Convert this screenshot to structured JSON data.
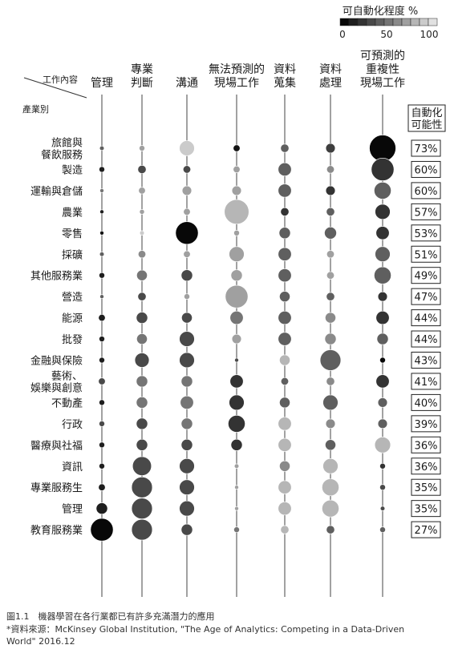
{
  "chart_data": {
    "type": "bubble-matrix",
    "legend": {
      "title": "可自動化程度 %",
      "ticks": [
        "0",
        "50",
        "100"
      ]
    },
    "header": {
      "diagonal_top": "工作內容",
      "diagonal_bottom": "產業別"
    },
    "columns": [
      [
        "管理"
      ],
      [
        "專業",
        "判斷"
      ],
      [
        "溝通"
      ],
      [
        "無法預測的",
        "現場工作"
      ],
      [
        "資料",
        "蒐集"
      ],
      [
        "資料",
        "處理"
      ],
      [
        "可預測的",
        "重複性",
        "現場工作"
      ]
    ],
    "rate_header": [
      "自動化",
      "可能性"
    ],
    "rows": [
      {
        "label": [
          "旅館與",
          "餐飲服務"
        ],
        "rate": "73%",
        "size": [
          0.12,
          0.15,
          0.4,
          0.18,
          0.22,
          0.25,
          0.7
        ],
        "automation": [
          60,
          30,
          10,
          95,
          60,
          75,
          100
        ]
      },
      {
        "label": [
          "製造"
        ],
        "rate": "60%",
        "size": [
          0.15,
          0.22,
          0.2,
          0.18,
          0.35,
          0.2,
          0.6
        ],
        "automation": [
          90,
          70,
          70,
          30,
          60,
          40,
          80
        ]
      },
      {
        "label": [
          "運輸與倉儲"
        ],
        "rate": "60%",
        "size": [
          0.1,
          0.18,
          0.25,
          0.25,
          0.35,
          0.25,
          0.45
        ],
        "automation": [
          50,
          30,
          30,
          30,
          60,
          80,
          60
        ]
      },
      {
        "label": [
          "農業"
        ],
        "rate": "57%",
        "size": [
          0.08,
          0.13,
          0.18,
          0.65,
          0.22,
          0.22,
          0.4
        ],
        "automation": [
          90,
          30,
          30,
          20,
          80,
          60,
          80
        ]
      },
      {
        "label": [
          "零售"
        ],
        "rate": "53%",
        "size": [
          0.08,
          0.12,
          0.6,
          0.15,
          0.3,
          0.32,
          0.35
        ],
        "automation": [
          95,
          10,
          100,
          30,
          60,
          60,
          80
        ]
      },
      {
        "label": [
          "採礦"
        ],
        "rate": "51%",
        "size": [
          0.12,
          0.2,
          0.18,
          0.4,
          0.35,
          0.2,
          0.4
        ],
        "automation": [
          60,
          40,
          30,
          30,
          60,
          30,
          60
        ]
      },
      {
        "label": [
          "其他服務業"
        ],
        "rate": "49%",
        "size": [
          0.15,
          0.28,
          0.3,
          0.3,
          0.35,
          0.2,
          0.45
        ],
        "automation": [
          90,
          50,
          70,
          30,
          60,
          30,
          60
        ]
      },
      {
        "label": [
          "營造"
        ],
        "rate": "47%",
        "size": [
          0.1,
          0.22,
          0.15,
          0.6,
          0.28,
          0.22,
          0.25
        ],
        "automation": [
          60,
          70,
          30,
          30,
          60,
          60,
          80
        ]
      },
      {
        "label": [
          "能源"
        ],
        "rate": "44%",
        "size": [
          0.18,
          0.3,
          0.28,
          0.35,
          0.35,
          0.28,
          0.35
        ],
        "automation": [
          90,
          70,
          70,
          50,
          60,
          40,
          80
        ]
      },
      {
        "label": [
          "批發"
        ],
        "rate": "44%",
        "size": [
          0.15,
          0.28,
          0.4,
          0.25,
          0.35,
          0.3,
          0.3
        ],
        "automation": [
          90,
          50,
          70,
          30,
          60,
          40,
          60
        ]
      },
      {
        "label": [
          "金融與保險"
        ],
        "rate": "43%",
        "size": [
          0.15,
          0.38,
          0.4,
          0.06,
          0.28,
          0.55,
          0.15
        ],
        "automation": [
          90,
          70,
          70,
          70,
          20,
          60,
          100
        ]
      },
      {
        "label": [
          "藝術、",
          "娛樂與創意"
        ],
        "rate": "41%",
        "size": [
          0.18,
          0.3,
          0.3,
          0.35,
          0.2,
          0.22,
          0.35
        ],
        "automation": [
          70,
          50,
          50,
          80,
          60,
          40,
          80
        ]
      },
      {
        "label": [
          "不動產"
        ],
        "rate": "40%",
        "size": [
          0.15,
          0.3,
          0.35,
          0.4,
          0.28,
          0.4,
          0.25
        ],
        "automation": [
          90,
          50,
          50,
          80,
          60,
          60,
          60
        ]
      },
      {
        "label": [
          "行政"
        ],
        "rate": "39%",
        "size": [
          0.15,
          0.3,
          0.3,
          0.45,
          0.35,
          0.25,
          0.25
        ],
        "automation": [
          70,
          70,
          50,
          80,
          20,
          40,
          60
        ]
      },
      {
        "label": [
          "醫療與社福"
        ],
        "rate": "36%",
        "size": [
          0.15,
          0.3,
          0.3,
          0.3,
          0.35,
          0.28,
          0.42
        ],
        "automation": [
          90,
          70,
          70,
          80,
          20,
          60,
          20
        ]
      },
      {
        "label": [
          "資訊"
        ],
        "rate": "36%",
        "size": [
          0.15,
          0.5,
          0.4,
          0.12,
          0.28,
          0.4,
          0.15
        ],
        "automation": [
          90,
          70,
          70,
          30,
          40,
          20,
          80
        ]
      },
      {
        "label": [
          "專業服務生"
        ],
        "rate": "35%",
        "size": [
          0.18,
          0.55,
          0.4,
          0.08,
          0.35,
          0.45,
          0.15
        ],
        "automation": [
          90,
          70,
          70,
          30,
          20,
          20,
          70
        ]
      },
      {
        "label": [
          "管理"
        ],
        "rate": "35%",
        "size": [
          0.3,
          0.55,
          0.4,
          0.1,
          0.35,
          0.45,
          0.12
        ],
        "automation": [
          90,
          70,
          70,
          30,
          20,
          20,
          70
        ]
      },
      {
        "label": [
          "教育服務業"
        ],
        "rate": "27%",
        "size": [
          0.6,
          0.55,
          0.3,
          0.15,
          0.22,
          0.22,
          0.15
        ],
        "automation": [
          100,
          70,
          70,
          50,
          20,
          60,
          60
        ]
      }
    ]
  },
  "caption": {
    "line1": "圖1.1　機器學習在各行業都已有許多充滿潛力的應用",
    "line2": "*資料來源：McKinsey Global Institution, \"The Age of Analytics: Competing in a Data-Driven",
    "line3": "World\" 2016.12"
  }
}
